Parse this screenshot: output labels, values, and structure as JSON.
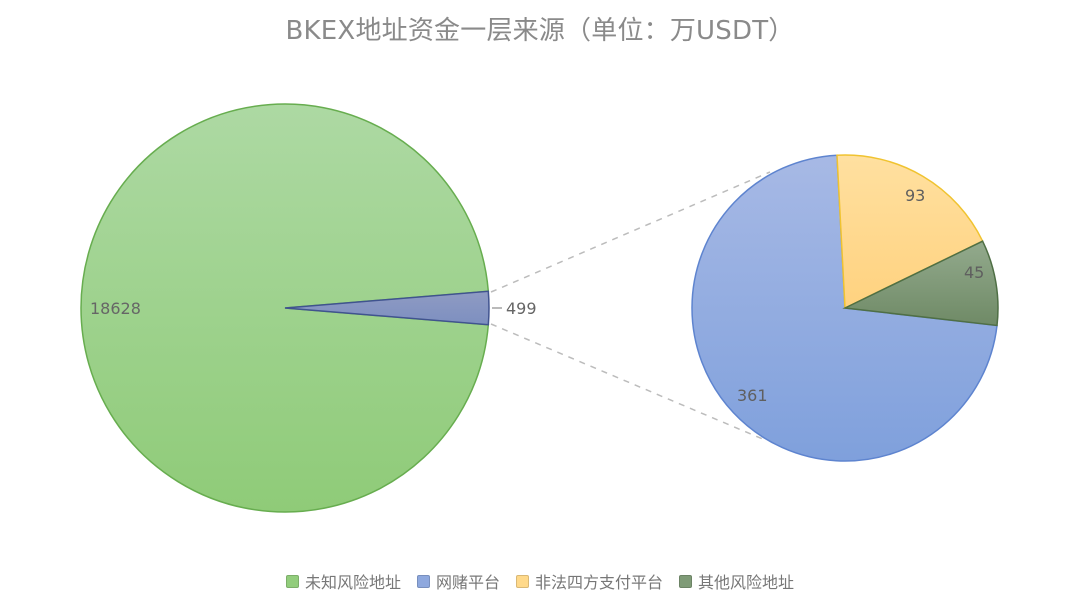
{
  "page": {
    "title": "BKEX地址资金一层来源（单位：万USDT）"
  },
  "chart_data": {
    "type": "pie",
    "title": "BKEX地址资金一层来源（单位：万USDT）",
    "main_pie": {
      "labels": [
        "未知风险地址",
        "网赌平台 + 非法四方支付平台 + 其他风险地址"
      ],
      "values": [
        18628,
        499
      ]
    },
    "detail_pie": {
      "labels": [
        "网赌平台",
        "非法四方支付平台",
        "其他风险地址"
      ],
      "values": [
        361,
        93,
        45
      ]
    },
    "legend_position": "bottom",
    "colors": {
      "未知风险地址": "#92cd7c",
      "网赌平台": "#8ea8de",
      "非法四方支付平台": "#ffd98a",
      "其他风险地址": "#7f9b77"
    }
  },
  "legend": {
    "items": [
      {
        "label": "未知风险地址",
        "color": "#92cd7c"
      },
      {
        "label": "网赌平台",
        "color": "#8ea8de"
      },
      {
        "label": "非法四方支付平台",
        "color": "#ffd98a"
      },
      {
        "label": "其他风险地址",
        "color": "#7f9b77"
      }
    ]
  }
}
